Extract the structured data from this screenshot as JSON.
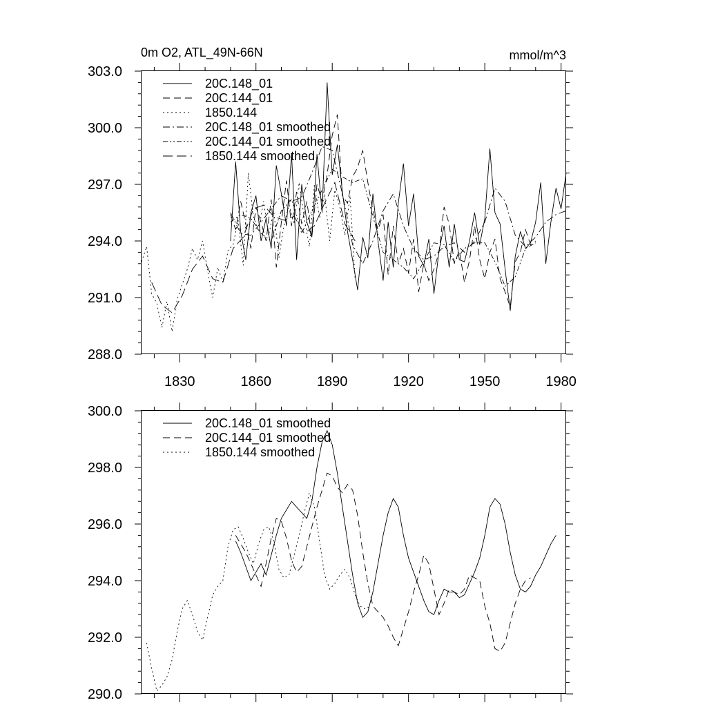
{
  "chart_data": [
    {
      "type": "line",
      "title": "0m O2, ATL_49N-66N",
      "units": "mmol/m^3",
      "xlim": [
        1815,
        1982
      ],
      "ylim": [
        288.0,
        303.0
      ],
      "yticks": [
        "303.0",
        "300.0",
        "297.0",
        "294.0",
        "291.0",
        "288.0"
      ],
      "yticks_values": [
        303,
        300,
        297,
        294,
        291,
        288
      ],
      "xticks": [
        "1830",
        "1860",
        "1890",
        "1920",
        "1950",
        "1980"
      ],
      "xticks_values": [
        1830,
        1860,
        1890,
        1920,
        1950,
        1980
      ],
      "grid": false,
      "legend_position": "top-left",
      "series": [
        {
          "name": "20C.148_01",
          "style": "solid",
          "x": [
            1850,
            1852,
            1854,
            1856,
            1858,
            1860,
            1862,
            1864,
            1866,
            1868,
            1870,
            1872,
            1874,
            1876,
            1878,
            1880,
            1882,
            1884,
            1886,
            1888,
            1890,
            1892,
            1894,
            1896,
            1898,
            1900,
            1902,
            1904,
            1906,
            1908,
            1910,
            1912,
            1914,
            1916,
            1918,
            1920,
            1922,
            1924,
            1926,
            1928,
            1930,
            1932,
            1934,
            1936,
            1938,
            1940,
            1942,
            1944,
            1946,
            1948,
            1950,
            1952,
            1954,
            1956,
            1958,
            1960,
            1962,
            1964,
            1966,
            1968,
            1970,
            1972,
            1974,
            1976,
            1978,
            1980,
            1982
          ],
          "values": [
            294.0,
            298.2,
            294.5,
            293.0,
            295.5,
            296.4,
            294.0,
            295.2,
            293.6,
            298.0,
            296.5,
            294.8,
            298.6,
            293.0,
            297.0,
            295.0,
            294.2,
            298.6,
            295.5,
            302.4,
            297.5,
            299.1,
            296.6,
            294.5,
            293.0,
            291.4,
            294.2,
            293.1,
            296.5,
            294.0,
            291.9,
            295.0,
            292.6,
            296.0,
            298.1,
            294.8,
            296.5,
            293.2,
            292.7,
            294.1,
            291.2,
            293.5,
            294.8,
            292.6,
            294.9,
            293.0,
            292.9,
            294.0,
            295.5,
            293.8,
            295.2,
            298.9,
            295.5,
            294.9,
            292.5,
            290.3,
            293.2,
            294.5,
            293.6,
            293.9,
            295.0,
            297.1,
            292.8,
            295.0,
            296.8,
            295.7,
            297.6
          ]
        },
        {
          "name": "20C.144_01",
          "style": "dashed",
          "x": [
            1850,
            1852,
            1854,
            1856,
            1858,
            1860,
            1862,
            1864,
            1866,
            1868,
            1870,
            1872,
            1874,
            1876,
            1878,
            1880,
            1882,
            1884,
            1886,
            1888,
            1890,
            1892,
            1894,
            1896,
            1898,
            1900,
            1902,
            1904,
            1906,
            1908,
            1910,
            1912,
            1914,
            1916,
            1918,
            1920,
            1922,
            1924,
            1926,
            1928,
            1930,
            1932,
            1934,
            1936,
            1938,
            1940,
            1942,
            1944,
            1946,
            1948,
            1950,
            1952,
            1954,
            1956,
            1958,
            1960,
            1962,
            1964,
            1966,
            1968,
            1970
          ],
          "values": [
            295.4,
            294.6,
            296.1,
            294.9,
            293.6,
            295.8,
            295.0,
            294.0,
            296.2,
            292.6,
            295.0,
            297.2,
            294.8,
            296.6,
            294.9,
            296.1,
            294.2,
            297.0,
            296.1,
            297.5,
            299.6,
            300.7,
            296.4,
            296.0,
            297.4,
            297.9,
            298.8,
            297.1,
            295.6,
            294.6,
            295.4,
            292.2,
            294.8,
            292.8,
            293.6,
            292.3,
            294.1,
            291.3,
            292.8,
            291.9,
            292.5,
            293.4,
            295.8,
            294.9,
            292.8,
            293.5,
            291.8,
            293.0,
            294.8,
            293.0,
            292.0,
            293.4,
            294.1,
            292.0,
            291.3,
            290.5,
            292.9,
            293.4,
            294.6,
            293.8,
            294.0
          ]
        },
        {
          "name": "1850.144",
          "style": "dotted",
          "x": [
            1815,
            1817,
            1819,
            1821,
            1823,
            1825,
            1827,
            1829,
            1831,
            1833,
            1835,
            1837,
            1839,
            1841,
            1843,
            1845,
            1847,
            1849,
            1851,
            1853,
            1855,
            1857,
            1859,
            1861,
            1863,
            1865,
            1867,
            1869,
            1871,
            1873,
            1875,
            1877,
            1879,
            1881,
            1883,
            1885,
            1887,
            1889,
            1891,
            1893,
            1895,
            1897,
            1899
          ],
          "values": [
            292.9,
            293.7,
            291.2,
            290.7,
            289.4,
            290.8,
            289.2,
            290.9,
            291.7,
            292.5,
            293.6,
            293.0,
            294.0,
            292.4,
            291.0,
            292.6,
            291.8,
            293.5,
            293.8,
            295.1,
            292.7,
            297.6,
            295.3,
            294.5,
            296.1,
            294.3,
            295.6,
            293.1,
            294.8,
            295.9,
            294.9,
            297.1,
            295.2,
            293.7,
            297.0,
            295.2,
            296.5,
            294.0,
            296.7,
            295.8,
            294.3,
            296.4,
            292.0
          ]
        },
        {
          "name": "20C.148_01 smoothed",
          "style": "dash-dot",
          "x": [
            1850,
            1854,
            1858,
            1862,
            1866,
            1870,
            1874,
            1878,
            1882,
            1886,
            1890,
            1894,
            1898,
            1902,
            1906,
            1910,
            1914,
            1918,
            1922,
            1926,
            1930,
            1934,
            1938,
            1942,
            1946,
            1950,
            1954,
            1958,
            1962,
            1966,
            1970,
            1974,
            1978,
            1982
          ],
          "values": [
            295.5,
            294.4,
            294.3,
            295.0,
            295.7,
            296.4,
            296.1,
            296.3,
            297.6,
            299.0,
            298.8,
            296.5,
            293.8,
            292.8,
            294.0,
            295.6,
            296.5,
            294.8,
            293.6,
            293.0,
            293.2,
            293.7,
            293.9,
            293.4,
            294.0,
            295.0,
            296.8,
            296.1,
            294.3,
            293.7,
            294.2,
            295.0,
            295.4,
            295.6
          ]
        },
        {
          "name": "20C.144_01 smoothed",
          "style": "dash-dot-dot",
          "x": [
            1850,
            1854,
            1858,
            1862,
            1866,
            1870,
            1874,
            1878,
            1882,
            1886,
            1890,
            1894,
            1898,
            1902,
            1906,
            1910,
            1914,
            1918,
            1922,
            1926,
            1930,
            1934,
            1938,
            1942,
            1946,
            1950,
            1954,
            1958,
            1962,
            1966,
            1970
          ],
          "values": [
            295.0,
            295.4,
            295.2,
            294.4,
            294.0,
            295.6,
            296.2,
            294.4,
            295.6,
            296.7,
            297.8,
            297.4,
            297.1,
            297.3,
            295.3,
            293.4,
            293.0,
            292.6,
            292.0,
            292.9,
            293.9,
            293.8,
            292.9,
            293.6,
            293.9,
            293.9,
            292.9,
            291.6,
            292.1,
            293.6,
            293.9
          ]
        },
        {
          "name": "1850.144 smoothed",
          "style": "long-dash",
          "x": [
            1819,
            1823,
            1827,
            1831,
            1835,
            1839,
            1843,
            1847,
            1851,
            1855,
            1859,
            1863,
            1867,
            1871,
            1875,
            1879,
            1883,
            1887,
            1891,
            1895,
            1899
          ],
          "values": [
            291.8,
            290.6,
            290.2,
            291.1,
            292.5,
            293.2,
            292.0,
            291.8,
            293.6,
            294.2,
            295.7,
            295.9,
            295.3,
            295.1,
            295.3,
            294.4,
            294.8,
            296.0,
            297.1,
            294.9,
            294.0
          ]
        }
      ]
    },
    {
      "type": "line",
      "xlim": [
        1815,
        1982
      ],
      "ylim": [
        290.0,
        300.0
      ],
      "yticks": [
        "300.0",
        "298.0",
        "296.0",
        "294.0",
        "292.0",
        "290.0"
      ],
      "yticks_values": [
        300,
        298,
        296,
        294,
        292,
        290
      ],
      "xticks_values": [
        1830,
        1860,
        1890,
        1920,
        1950,
        1980
      ],
      "grid": false,
      "legend_position": "top-left",
      "series": [
        {
          "name": "20C.148_01 smoothed",
          "style": "solid",
          "x": [
            1852,
            1854,
            1856,
            1858,
            1860,
            1862,
            1864,
            1866,
            1868,
            1870,
            1872,
            1874,
            1876,
            1878,
            1880,
            1882,
            1884,
            1886,
            1888,
            1890,
            1892,
            1894,
            1896,
            1898,
            1900,
            1902,
            1904,
            1906,
            1908,
            1910,
            1912,
            1914,
            1916,
            1918,
            1920,
            1922,
            1924,
            1926,
            1928,
            1930,
            1932,
            1934,
            1936,
            1938,
            1940,
            1942,
            1944,
            1946,
            1948,
            1950,
            1952,
            1954,
            1956,
            1958,
            1960,
            1962,
            1964,
            1966,
            1968,
            1970,
            1972,
            1974,
            1976,
            1978
          ],
          "values": [
            295.4,
            295.0,
            294.5,
            294.0,
            294.3,
            294.6,
            294.2,
            294.9,
            295.6,
            296.2,
            296.5,
            296.8,
            296.6,
            296.4,
            296.2,
            296.8,
            298.0,
            298.9,
            299.3,
            298.8,
            297.8,
            296.6,
            295.4,
            294.2,
            293.2,
            292.7,
            292.9,
            293.6,
            294.6,
            295.6,
            296.4,
            296.9,
            296.6,
            295.6,
            294.8,
            294.3,
            293.8,
            293.3,
            292.9,
            292.8,
            293.3,
            293.7,
            293.6,
            293.6,
            293.4,
            293.5,
            293.9,
            294.3,
            294.8,
            295.6,
            296.6,
            296.9,
            296.7,
            296.0,
            295.0,
            294.2,
            293.7,
            293.6,
            293.8,
            294.2,
            294.5,
            294.9,
            295.3,
            295.6
          ]
        },
        {
          "name": "20C.144_01 smoothed",
          "style": "dashed",
          "x": [
            1852,
            1854,
            1856,
            1858,
            1860,
            1862,
            1864,
            1866,
            1868,
            1870,
            1872,
            1874,
            1876,
            1878,
            1880,
            1882,
            1884,
            1886,
            1888,
            1890,
            1892,
            1894,
            1896,
            1898,
            1900,
            1902,
            1904,
            1906,
            1908,
            1910,
            1912,
            1914,
            1916,
            1918,
            1920,
            1922,
            1924,
            1926,
            1928,
            1930,
            1932,
            1934,
            1936,
            1938,
            1940,
            1942,
            1944,
            1946,
            1948,
            1950,
            1952,
            1954,
            1956,
            1958,
            1960,
            1962,
            1964,
            1966,
            1968
          ],
          "values": [
            295.6,
            295.3,
            295.0,
            294.6,
            294.2,
            293.8,
            294.6,
            295.5,
            296.2,
            296.1,
            295.5,
            294.7,
            294.3,
            294.5,
            295.2,
            295.9,
            296.6,
            297.2,
            297.8,
            297.7,
            297.3,
            297.1,
            297.4,
            297.2,
            296.3,
            295.0,
            293.9,
            293.1,
            292.9,
            292.7,
            292.4,
            292.0,
            291.7,
            292.3,
            292.9,
            293.6,
            294.2,
            294.9,
            294.6,
            293.7,
            292.8,
            293.2,
            293.7,
            293.6,
            293.5,
            293.7,
            294.2,
            294.1,
            294.0,
            293.1,
            292.5,
            291.6,
            291.5,
            291.8,
            292.5,
            293.2,
            293.7,
            294.0,
            294.1
          ]
        },
        {
          "name": "1850.144 smoothed",
          "style": "dotted",
          "x": [
            1817,
            1819,
            1821,
            1823,
            1825,
            1827,
            1829,
            1831,
            1833,
            1835,
            1837,
            1839,
            1841,
            1843,
            1845,
            1847,
            1849,
            1851,
            1853,
            1855,
            1857,
            1859,
            1861,
            1863,
            1865,
            1867,
            1869,
            1871,
            1873,
            1875,
            1877,
            1879,
            1881,
            1883,
            1885,
            1887,
            1889,
            1891,
            1893,
            1895,
            1897,
            1899,
            1901,
            1903,
            1905
          ],
          "values": [
            291.8,
            290.9,
            290.1,
            290.3,
            290.6,
            291.2,
            292.2,
            293.0,
            293.3,
            292.8,
            292.2,
            291.9,
            292.7,
            293.5,
            293.8,
            294.0,
            295.2,
            295.8,
            295.9,
            295.5,
            295.0,
            294.6,
            295.3,
            295.8,
            295.9,
            295.4,
            294.4,
            294.1,
            294.2,
            294.9,
            295.6,
            296.4,
            297.1,
            296.6,
            295.4,
            294.2,
            293.7,
            293.9,
            294.2,
            294.4,
            294.1,
            293.5,
            293.1,
            293.0,
            293.1
          ]
        }
      ]
    }
  ],
  "plot1": {
    "title": "0m O2, ATL_49N-66N",
    "units": "mmol/m^3",
    "legend": [
      "20C.148_01",
      "20C.144_01",
      "1850.144",
      "20C.148_01 smoothed",
      "20C.144_01 smoothed",
      "1850.144 smoothed"
    ]
  },
  "plot2": {
    "legend": [
      "20C.148_01 smoothed",
      "20C.144_01 smoothed",
      "1850.144 smoothed"
    ]
  }
}
